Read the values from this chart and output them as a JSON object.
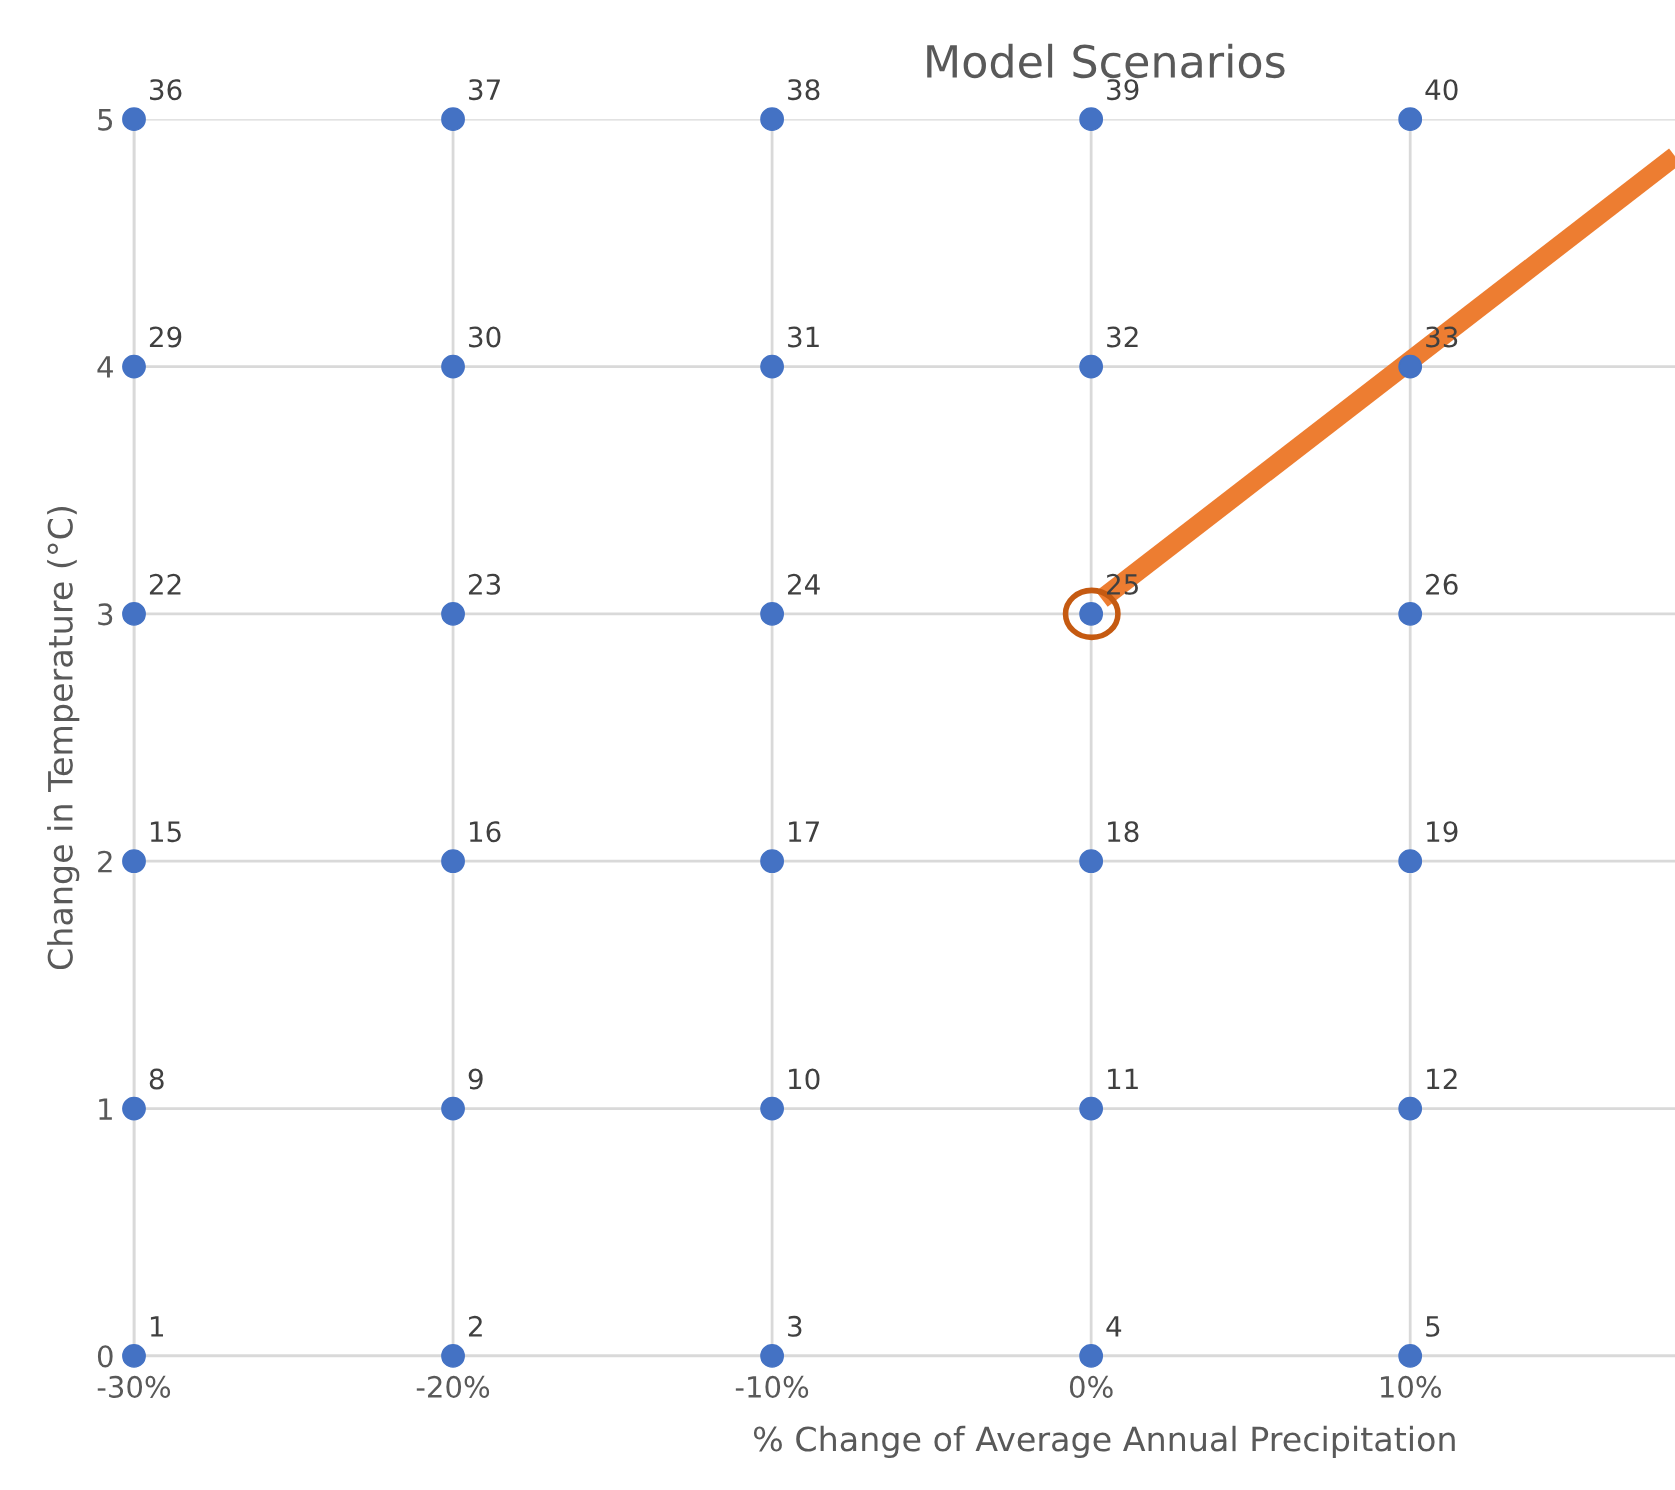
{
  "chart_data": {
    "type": "scatter",
    "title": "Model Scenarios",
    "xlabel": "% Change of Average Annual Precipitation",
    "ylabel": "Change in Temperature (°C)",
    "x": [
      -30,
      -20,
      -10,
      0,
      10,
      -30,
      -20,
      -10,
      0,
      10,
      -30,
      -20,
      -10,
      0,
      10,
      -30,
      -20,
      -10,
      0,
      10,
      -30,
      -20,
      -10,
      0,
      10,
      -30,
      -20,
      -10,
      0,
      10
    ],
    "series": [
      {
        "color": "#4472c4",
        "values": [
          0,
          0,
          0,
          0,
          0,
          1,
          1,
          1,
          1,
          1,
          2,
          2,
          2,
          2,
          2,
          3,
          3,
          3,
          3,
          3,
          4,
          4,
          4,
          4,
          4,
          5,
          5,
          5,
          5,
          5
        ]
      }
    ],
    "annotations": [
      {
        "text": "1",
        "x": -30,
        "y": 0
      },
      {
        "text": "2",
        "x": -20,
        "y": 0
      },
      {
        "text": "3",
        "x": -10,
        "y": 0
      },
      {
        "text": "4",
        "x": 0,
        "y": 0
      },
      {
        "text": "5",
        "x": 10,
        "y": 0
      },
      {
        "text": "8",
        "x": -30,
        "y": 1
      },
      {
        "text": "9",
        "x": -20,
        "y": 1
      },
      {
        "text": "10",
        "x": -10,
        "y": 1
      },
      {
        "text": "11",
        "x": 0,
        "y": 1
      },
      {
        "text": "12",
        "x": 10,
        "y": 1
      },
      {
        "text": "15",
        "x": -30,
        "y": 2
      },
      {
        "text": "16",
        "x": -20,
        "y": 2
      },
      {
        "text": "17",
        "x": -10,
        "y": 2
      },
      {
        "text": "18",
        "x": 0,
        "y": 2
      },
      {
        "text": "19",
        "x": 10,
        "y": 2
      },
      {
        "text": "22",
        "x": -30,
        "y": 3
      },
      {
        "text": "23",
        "x": -20,
        "y": 3
      },
      {
        "text": "24",
        "x": -10,
        "y": 3
      },
      {
        "text": "25",
        "x": 0,
        "y": 3
      },
      {
        "text": "26",
        "x": 10,
        "y": 3
      },
      {
        "text": "29",
        "x": -30,
        "y": 4
      },
      {
        "text": "30",
        "x": -20,
        "y": 4
      },
      {
        "text": "31",
        "x": -10,
        "y": 4
      },
      {
        "text": "32",
        "x": 0,
        "y": 4
      },
      {
        "text": "33",
        "x": 10,
        "y": 4
      },
      {
        "text": "36",
        "x": -30,
        "y": 5
      },
      {
        "text": "37",
        "x": -20,
        "y": 5
      },
      {
        "text": "38",
        "x": -10,
        "y": 5
      },
      {
        "text": "39",
        "x": 0,
        "y": 5
      },
      {
        "text": "40",
        "x": 10,
        "y": 5
      }
    ],
    "xlim": [
      -30,
      18.3
    ],
    "ylim": [
      0,
      5
    ],
    "xticks": [
      {
        "value": -30,
        "label": "-30%"
      },
      {
        "value": -20,
        "label": "-20%"
      },
      {
        "value": -10,
        "label": "-10%"
      },
      {
        "value": 0,
        "label": "0%"
      },
      {
        "value": 10,
        "label": "10%"
      }
    ],
    "yticks": [
      0,
      1,
      2,
      3,
      4,
      5
    ],
    "grid": true,
    "marker": "circle"
  }
}
